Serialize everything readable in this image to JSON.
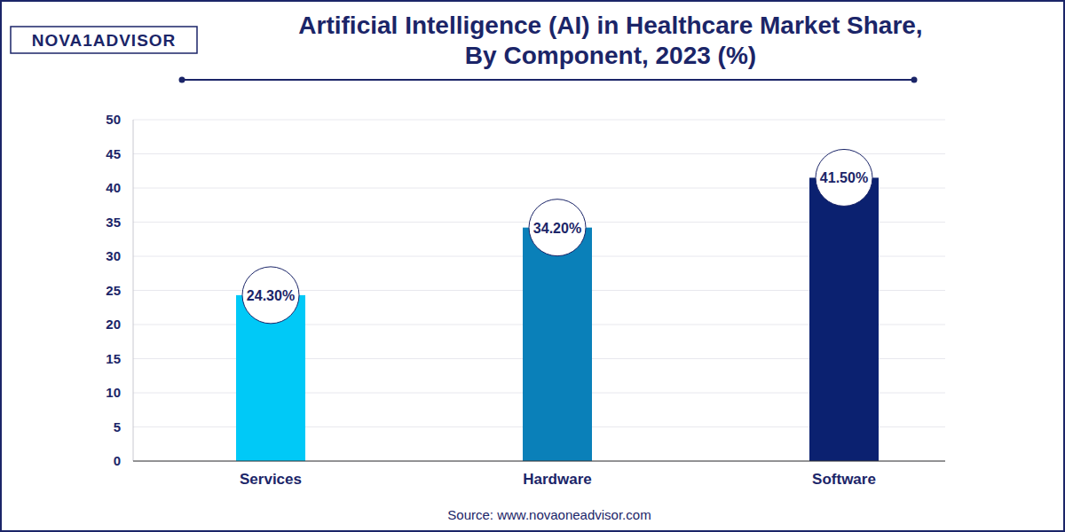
{
  "chart_data": {
    "type": "bar",
    "title": "Artificial Intelligence (AI) in Healthcare Market Share, By Component, 2023 (%)",
    "logo": "NOVA1ADVISOR",
    "source": "Source: www.novaoneadvisor.com",
    "categories": [
      "Services",
      "Hardware",
      "Software"
    ],
    "values": [
      24.3,
      34.2,
      41.5
    ],
    "value_labels": [
      "24.30%",
      "34.20%",
      "41.50%"
    ],
    "colors": [
      "#00c9f7",
      "#0a80b9",
      "#0b2170"
    ],
    "ylim": [
      0,
      50
    ],
    "yticks": [
      0,
      5,
      10,
      15,
      20,
      25,
      30,
      35,
      40,
      45,
      50
    ],
    "grid": true,
    "data_labels": true
  }
}
